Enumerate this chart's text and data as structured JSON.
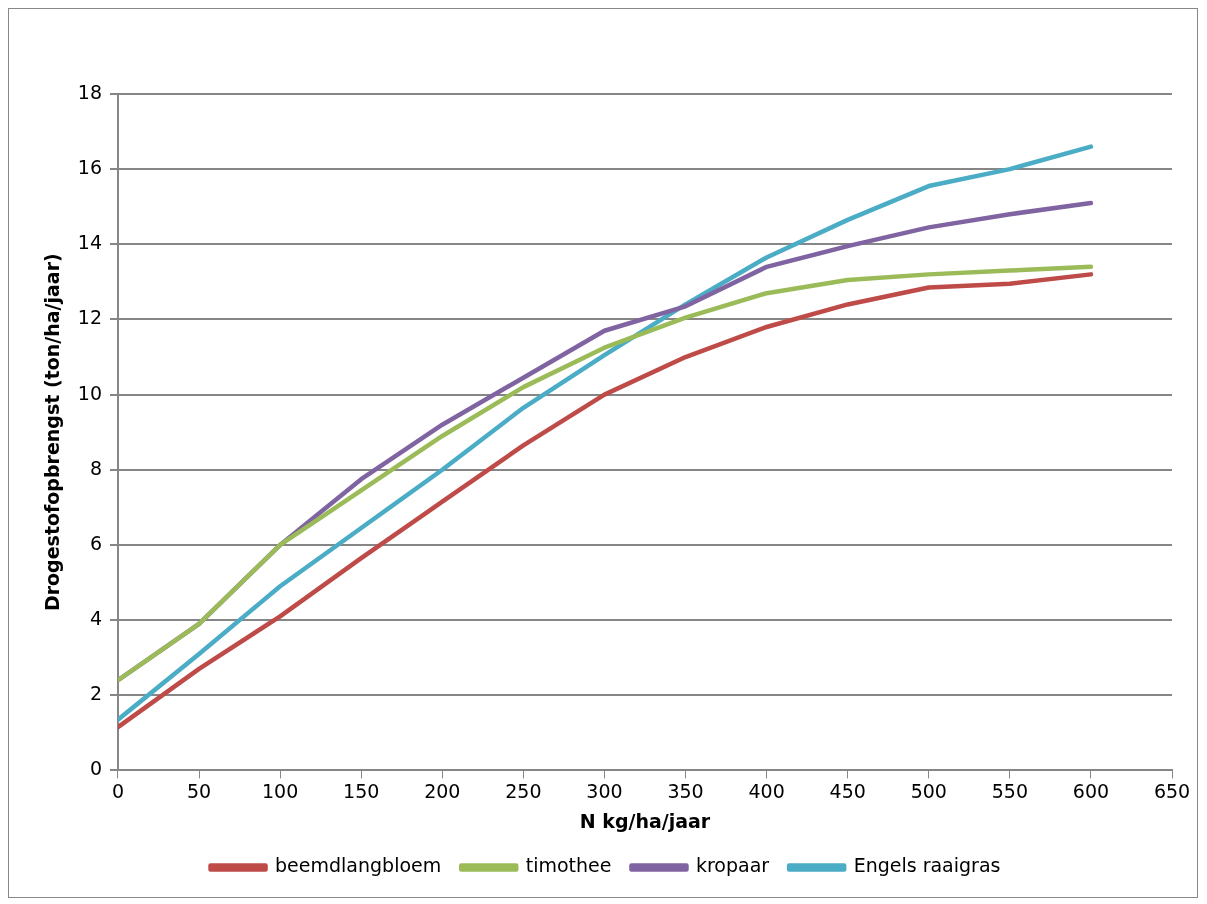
{
  "chart_data": {
    "type": "line",
    "xlabel": "N kg/ha/jaar",
    "ylabel": "Drogestofopbrengst (ton/ha/jaar)",
    "x": [
      0,
      50,
      100,
      150,
      200,
      250,
      300,
      350,
      400,
      450,
      500,
      550,
      600
    ],
    "xlim": [
      0,
      650
    ],
    "xticks": [
      0,
      50,
      100,
      150,
      200,
      250,
      300,
      350,
      400,
      450,
      500,
      550,
      600,
      650
    ],
    "ylim": [
      0,
      18
    ],
    "yticks": [
      0,
      2,
      4,
      6,
      8,
      10,
      12,
      14,
      16,
      18
    ],
    "grid": "y",
    "legend": "bottom",
    "marker": "none",
    "line_style": "solid",
    "series": [
      {
        "name": "beemdlangbloem",
        "color": "#be4b48",
        "values": [
          1.15,
          2.7,
          4.1,
          5.65,
          7.15,
          8.65,
          10.0,
          11.0,
          11.8,
          12.4,
          12.85,
          12.95,
          13.2
        ]
      },
      {
        "name": "timothee",
        "color": "#9bbb59",
        "values": [
          2.4,
          3.9,
          6.0,
          7.45,
          8.9,
          10.2,
          11.25,
          12.05,
          12.7,
          13.05,
          13.2,
          13.3,
          13.4
        ]
      },
      {
        "name": "kropaar",
        "color": "#8064a2",
        "values": [
          2.4,
          3.9,
          6.0,
          7.75,
          9.2,
          10.45,
          11.7,
          12.35,
          13.4,
          13.95,
          14.45,
          14.8,
          15.1
        ]
      },
      {
        "name": "Engels raaigras",
        "color": "#4bacc6",
        "values": [
          1.35,
          3.1,
          4.9,
          6.45,
          8.0,
          9.65,
          11.05,
          12.4,
          13.65,
          14.65,
          15.55,
          16.0,
          16.6
        ]
      }
    ]
  }
}
